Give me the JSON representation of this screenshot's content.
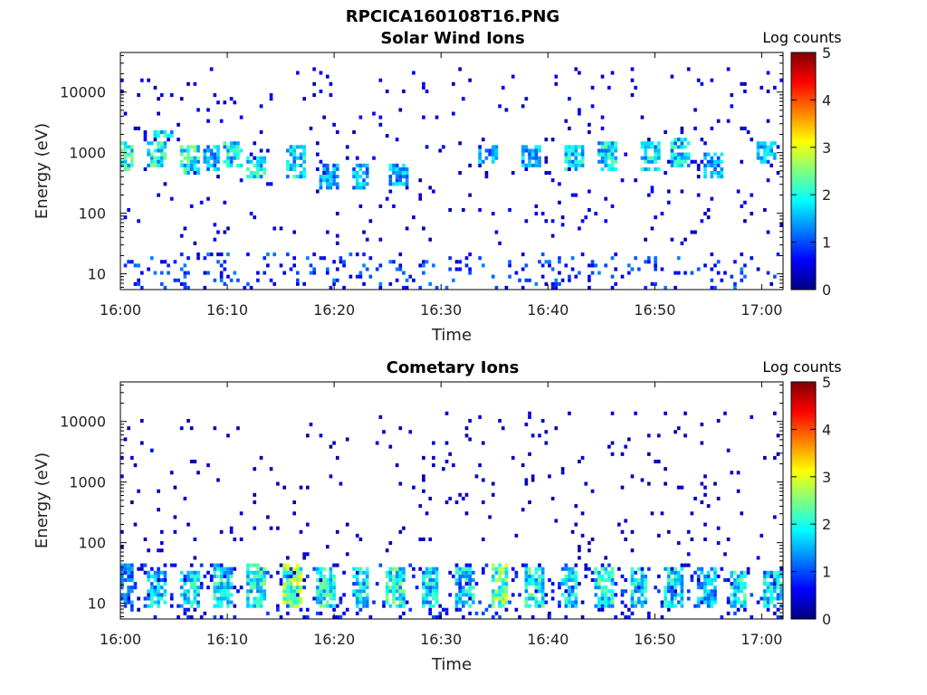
{
  "figure": {
    "title": "RPCICA160108T16.PNG"
  },
  "colormap": {
    "stops": [
      "#00007f",
      "#0000ff",
      "#007fff",
      "#00ffff",
      "#7fff7f",
      "#ffff00",
      "#ff7f00",
      "#ff0000",
      "#7f0000"
    ]
  },
  "chart_data": [
    {
      "type": "heatmap",
      "title": "Solar Wind Ions",
      "xlabel": "Time",
      "ylabel": "Energy (eV)",
      "xlim": [
        "16:00",
        "17:02"
      ],
      "x_ticks": [
        "16:00",
        "16:10",
        "16:20",
        "16:30",
        "16:40",
        "16:50",
        "17:00"
      ],
      "y_scale": "log",
      "ylim": [
        5.5,
        45000
      ],
      "y_ticks": [
        10,
        100,
        1000,
        10000
      ],
      "y_tick_labels": [
        "10",
        "100",
        "1000",
        "10000"
      ],
      "colorbar": {
        "label": "Log counts",
        "range": [
          0,
          5
        ],
        "ticks": [
          "0",
          "1",
          "2",
          "3",
          "4",
          "5"
        ]
      },
      "bursts": [
        {
          "t": 0.2,
          "e_lo": 500,
          "e_hi": 1600,
          "c": 2.0
        },
        {
          "t": 3.5,
          "e_lo": 550,
          "e_hi": 1500,
          "c": 2.0
        },
        {
          "t": 4.0,
          "e_lo": 1800,
          "e_hi": 2500,
          "c": 1.8
        },
        {
          "t": 6.5,
          "e_lo": 450,
          "e_hi": 1300,
          "c": 2.0
        },
        {
          "t": 8.5,
          "e_lo": 500,
          "e_hi": 1400,
          "c": 1.5
        },
        {
          "t": 10.5,
          "e_lo": 550,
          "e_hi": 1500,
          "c": 1.8
        },
        {
          "t": 12.8,
          "e_lo": 350,
          "e_hi": 900,
          "c": 1.8
        },
        {
          "t": 16.5,
          "e_lo": 400,
          "e_hi": 1300,
          "c": 1.8
        },
        {
          "t": 19.5,
          "e_lo": 250,
          "e_hi": 700,
          "c": 1.5
        },
        {
          "t": 22.5,
          "e_lo": 250,
          "e_hi": 700,
          "c": 1.5
        },
        {
          "t": 26.0,
          "e_lo": 300,
          "e_hi": 700,
          "c": 1.5
        },
        {
          "t": 34.5,
          "e_lo": 700,
          "e_hi": 1400,
          "c": 1.5
        },
        {
          "t": 38.5,
          "e_lo": 600,
          "e_hi": 1300,
          "c": 1.5
        },
        {
          "t": 42.5,
          "e_lo": 500,
          "e_hi": 1300,
          "c": 1.8
        },
        {
          "t": 45.5,
          "e_lo": 500,
          "e_hi": 1500,
          "c": 1.8
        },
        {
          "t": 49.5,
          "e_lo": 500,
          "e_hi": 1500,
          "c": 1.8
        },
        {
          "t": 52.5,
          "e_lo": 600,
          "e_hi": 1700,
          "c": 1.8
        },
        {
          "t": 55.5,
          "e_lo": 400,
          "e_hi": 1000,
          "c": 1.5
        },
        {
          "t": 60.5,
          "e_lo": 700,
          "e_hi": 1600,
          "c": 1.5
        }
      ],
      "low_energy_band": {
        "e_lo": 5.5,
        "e_hi": 22,
        "c": 1.0
      },
      "scatter_range": {
        "e_lo": 30,
        "e_hi": 25000,
        "c": 0.4
      }
    },
    {
      "type": "heatmap",
      "title": "Cometary Ions",
      "xlabel": "Time",
      "ylabel": "Energy (eV)",
      "xlim": [
        "16:00",
        "17:02"
      ],
      "x_ticks": [
        "16:00",
        "16:10",
        "16:20",
        "16:30",
        "16:40",
        "16:50",
        "17:00"
      ],
      "y_scale": "log",
      "ylim": [
        5.5,
        45000
      ],
      "y_ticks": [
        10,
        100,
        1000,
        10000
      ],
      "y_tick_labels": [
        "10",
        "100",
        "1000",
        "10000"
      ],
      "colorbar": {
        "label": "Log counts",
        "range": [
          0,
          5
        ],
        "ticks": [
          "0",
          "1",
          "2",
          "3",
          "4",
          "5"
        ]
      },
      "bursts": [
        {
          "t": 0.2,
          "e_lo": 8,
          "e_hi": 45,
          "c": 1.2
        },
        {
          "t": 3.3,
          "e_lo": 8,
          "e_hi": 35,
          "c": 1.8
        },
        {
          "t": 6.5,
          "e_lo": 8,
          "e_hi": 35,
          "c": 1.8
        },
        {
          "t": 9.7,
          "e_lo": 8,
          "e_hi": 45,
          "c": 1.8
        },
        {
          "t": 12.8,
          "e_lo": 8,
          "e_hi": 45,
          "c": 2.0
        },
        {
          "t": 16.2,
          "e_lo": 8,
          "e_hi": 45,
          "c": 2.5
        },
        {
          "t": 19.3,
          "e_lo": 8,
          "e_hi": 40,
          "c": 2.0
        },
        {
          "t": 22.5,
          "e_lo": 8,
          "e_hi": 40,
          "c": 1.8
        },
        {
          "t": 25.8,
          "e_lo": 8,
          "e_hi": 40,
          "c": 2.0
        },
        {
          "t": 29.0,
          "e_lo": 8,
          "e_hi": 40,
          "c": 1.8
        },
        {
          "t": 32.2,
          "e_lo": 8,
          "e_hi": 40,
          "c": 1.8
        },
        {
          "t": 35.5,
          "e_lo": 8,
          "e_hi": 45,
          "c": 2.5
        },
        {
          "t": 38.7,
          "e_lo": 8,
          "e_hi": 40,
          "c": 2.0
        },
        {
          "t": 42.0,
          "e_lo": 8,
          "e_hi": 40,
          "c": 1.8
        },
        {
          "t": 45.2,
          "e_lo": 8,
          "e_hi": 40,
          "c": 2.0
        },
        {
          "t": 48.5,
          "e_lo": 8,
          "e_hi": 40,
          "c": 1.8
        },
        {
          "t": 51.7,
          "e_lo": 8,
          "e_hi": 40,
          "c": 1.8
        },
        {
          "t": 54.8,
          "e_lo": 8,
          "e_hi": 40,
          "c": 1.5
        },
        {
          "t": 57.8,
          "e_lo": 8,
          "e_hi": 35,
          "c": 2.0
        },
        {
          "t": 61.0,
          "e_lo": 8,
          "e_hi": 35,
          "c": 1.8
        }
      ],
      "low_energy_band": {
        "e_lo": 5.5,
        "e_hi": 45,
        "c": 0.8
      },
      "scatter_range": {
        "e_lo": 50,
        "e_hi": 15000,
        "c": 0.3
      }
    }
  ]
}
